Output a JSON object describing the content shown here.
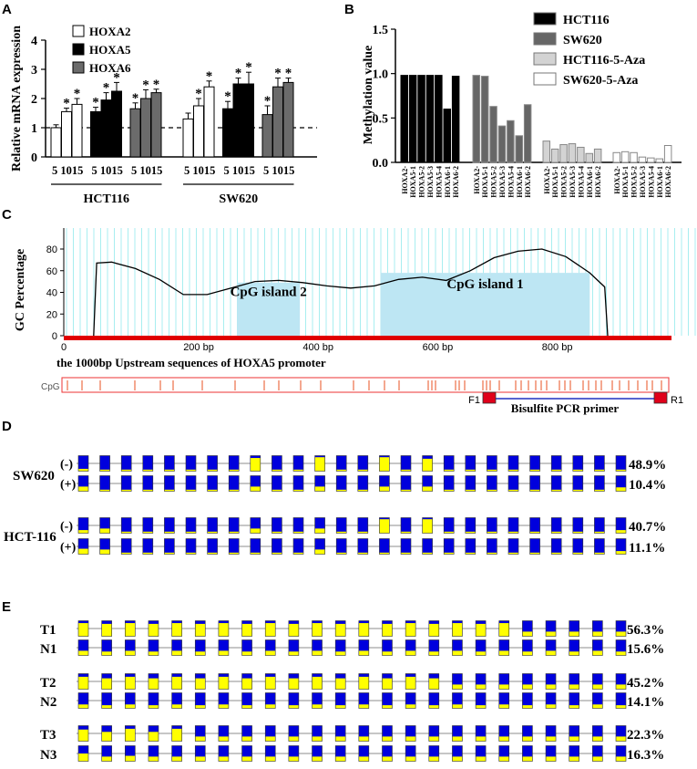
{
  "panels": {
    "a": "A",
    "b": "B",
    "c": "C",
    "d": "D",
    "e": "E"
  },
  "chart_data": [
    {
      "type": "bar",
      "panel": "A",
      "ylabel": "Relative mRNA expression",
      "ylim": [
        0,
        4
      ],
      "yticks": [
        "0",
        "1",
        "2",
        "3",
        "4"
      ],
      "reference_line": 1,
      "legend": [
        "HOXA2",
        "HOXA5",
        "HOXA6"
      ],
      "doses": [
        "5",
        "10",
        "15"
      ],
      "dose_label": "5 1015",
      "groups": [
        {
          "name": "HCT116",
          "series": [
            {
              "name": "HOXA2",
              "color": "#ffffff",
              "values": [
                1.0,
                1.55,
                1.8
              ],
              "err": [
                0.1,
                0.12,
                0.2
              ],
              "star": [
                false,
                true,
                true
              ]
            },
            {
              "name": "HOXA5",
              "color": "#000000",
              "values": [
                1.55,
                1.95,
                2.25
              ],
              "err": [
                0.15,
                0.25,
                0.3
              ],
              "star": [
                true,
                true,
                true
              ]
            },
            {
              "name": "HOXA6",
              "color": "#6b6b6b",
              "values": [
                1.65,
                2.0,
                2.2
              ],
              "err": [
                0.2,
                0.3,
                0.12
              ],
              "star": [
                true,
                true,
                true
              ]
            }
          ]
        },
        {
          "name": "SW620",
          "series": [
            {
              "name": "HOXA2",
              "color": "#ffffff",
              "values": [
                1.3,
                1.75,
                2.4
              ],
              "err": [
                0.2,
                0.25,
                0.2
              ],
              "star": [
                false,
                true,
                true
              ]
            },
            {
              "name": "HOXA5",
              "color": "#000000",
              "values": [
                1.65,
                2.5,
                2.5
              ],
              "err": [
                0.25,
                0.2,
                0.4
              ],
              "star": [
                true,
                true,
                true
              ]
            },
            {
              "name": "HOXA6",
              "color": "#6b6b6b",
              "values": [
                1.45,
                2.4,
                2.55
              ],
              "err": [
                0.3,
                0.3,
                0.15
              ],
              "star": [
                true,
                true,
                true
              ]
            }
          ]
        }
      ]
    },
    {
      "type": "bar",
      "panel": "B",
      "ylabel": "Methylation value",
      "ylim": [
        0,
        1.5
      ],
      "yticks": [
        "0.0",
        "0.5",
        "1.0",
        "1.5"
      ],
      "categories": [
        "HOXA2-",
        "HOXA5-1",
        "HOXA5-2",
        "HOXA5-3",
        "HOXA5-4",
        "HOXA6-1",
        "HOXA6-2"
      ],
      "series": [
        {
          "name": "HCT116",
          "color": "#000000",
          "values": [
            0.98,
            0.98,
            0.98,
            0.98,
            0.98,
            0.6,
            0.97
          ]
        },
        {
          "name": "SW620",
          "color": "#666666",
          "values": [
            0.98,
            0.97,
            0.63,
            0.41,
            0.47,
            0.3,
            0.65
          ]
        },
        {
          "name": "HCT116-5-Aza",
          "color": "#d3d3d3",
          "values": [
            0.24,
            0.15,
            0.2,
            0.21,
            0.17,
            0.1,
            0.15
          ]
        },
        {
          "name": "SW620-5-Aza",
          "color": "#ffffff",
          "values": [
            0.11,
            0.12,
            0.11,
            0.06,
            0.05,
            0.04,
            0.19
          ]
        }
      ]
    },
    {
      "type": "line",
      "panel": "C",
      "ylabel": "GC Percentage",
      "ylim": [
        0,
        80
      ],
      "yticks": [
        "0",
        "20",
        "40",
        "60",
        "80"
      ],
      "x_ticks": [
        {
          "value": 0,
          "label": "0"
        },
        {
          "value": 200,
          "label": "200  bp"
        },
        {
          "value": 400,
          "label": "400  bp"
        },
        {
          "value": 600,
          "label": "600  bp"
        },
        {
          "value": 800,
          "label": "800  bp"
        }
      ],
      "x": [
        50,
        55,
        80,
        120,
        160,
        200,
        240,
        280,
        320,
        360,
        400,
        440,
        480,
        520,
        560,
        600,
        640,
        680,
        720,
        760,
        800,
        840,
        880,
        905,
        910
      ],
      "y": [
        0,
        67,
        68,
        62,
        52,
        38,
        38,
        44,
        50,
        51,
        49,
        46,
        44,
        46,
        52,
        54,
        51,
        60,
        72,
        78,
        80,
        73,
        58,
        45,
        0
      ],
      "islands": [
        {
          "label": "CpG island 2",
          "start": 290,
          "end": 395
        },
        {
          "label": "CpG  island 1",
          "start": 530,
          "end": 880
        }
      ],
      "caption": "the 1000bp Upstream sequences of HOXA5 promoter",
      "cpg_track_label": "CpG",
      "primer_f": "F1",
      "primer_r": "R1",
      "primer_label": "Bisulfite PCR primer"
    },
    {
      "type": "table",
      "panel": "D",
      "description": "bisulfite sequencing methylation per CpG site",
      "rows": [
        {
          "cell": "SW620",
          "treat": "(-)",
          "pct": "48.9%",
          "meth": [
            0.15,
            0.1,
            0.1,
            0.1,
            0.1,
            0.1,
            0.1,
            0.1,
            0.85,
            0.1,
            0.1,
            0.9,
            0.1,
            0.1,
            0.9,
            0.1,
            0.8,
            0.1,
            0.1,
            0.1,
            0.1,
            0.1,
            0.1,
            0.1,
            0.1,
            0.1
          ]
        },
        {
          "cell": "",
          "treat": "(+)",
          "pct": "10.4%",
          "meth": [
            0.3,
            0.1,
            0.1,
            0.1,
            0.1,
            0.1,
            0.1,
            0.1,
            0.3,
            0.1,
            0.1,
            0.3,
            0.1,
            0.1,
            0.3,
            0.1,
            0.3,
            0.1,
            0.1,
            0.1,
            0.1,
            0.1,
            0.1,
            0.1,
            0.1,
            0.25
          ]
        },
        {
          "cell": "HCT-116",
          "treat": "(-)",
          "pct": "40.7%",
          "meth": [
            0.2,
            0.3,
            0.1,
            0.1,
            0.1,
            0.1,
            0.1,
            0.1,
            0.3,
            0.1,
            0.1,
            0.3,
            0.1,
            0.1,
            0.9,
            0.1,
            0.9,
            0.1,
            0.1,
            0.1,
            0.1,
            0.1,
            0.1,
            0.1,
            0.1,
            0.2
          ]
        },
        {
          "cell": "",
          "treat": "(+)",
          "pct": "11.1%",
          "meth": [
            0.35,
            0.3,
            0.1,
            0.1,
            0.1,
            0.1,
            0.1,
            0.1,
            0.1,
            0.1,
            0.1,
            0.3,
            0.1,
            0.1,
            0.1,
            0.1,
            0.1,
            0.1,
            0.1,
            0.1,
            0.1,
            0.1,
            0.1,
            0.1,
            0.1,
            0.2
          ]
        }
      ]
    },
    {
      "type": "table",
      "panel": "E",
      "description": "bisulfite sequencing methylation in tumor (T) and normal (N) tissues",
      "rows": [
        {
          "sample": "T1",
          "pct": "56.3%",
          "meth": [
            0.85,
            0.8,
            0.85,
            0.8,
            0.85,
            0.8,
            0.85,
            0.8,
            0.85,
            0.8,
            0.85,
            0.8,
            0.85,
            0.8,
            0.85,
            0.8,
            0.85,
            0.8,
            0.85,
            0.3,
            0.3,
            0.3,
            0.3,
            0.3
          ]
        },
        {
          "sample": "N1",
          "pct": "15.6%",
          "meth": [
            0.3,
            0.25,
            0.3,
            0.25,
            0.3,
            0.25,
            0.3,
            0.25,
            0.3,
            0.25,
            0.3,
            0.25,
            0.3,
            0.25,
            0.3,
            0.25,
            0.3,
            0.25,
            0.3,
            0.25,
            0.3,
            0.25,
            0.3,
            0.25
          ]
        },
        {
          "sample": "T2",
          "pct": "45.2%",
          "meth": [
            0.8,
            0.7,
            0.8,
            0.7,
            0.8,
            0.7,
            0.8,
            0.7,
            0.8,
            0.7,
            0.8,
            0.7,
            0.8,
            0.7,
            0.8,
            0.7,
            0.3,
            0.3,
            0.3,
            0.3,
            0.3,
            0.3,
            0.3,
            0.3
          ]
        },
        {
          "sample": "N2",
          "pct": "14.1%",
          "meth": [
            0.25,
            0.2,
            0.25,
            0.2,
            0.25,
            0.2,
            0.25,
            0.2,
            0.25,
            0.2,
            0.25,
            0.2,
            0.25,
            0.2,
            0.25,
            0.2,
            0.25,
            0.2,
            0.25,
            0.2,
            0.25,
            0.2,
            0.25,
            0.2
          ]
        },
        {
          "sample": "T3",
          "pct": "22.3%",
          "meth": [
            0.75,
            0.6,
            0.8,
            0.6,
            0.8,
            0.3,
            0.3,
            0.3,
            0.3,
            0.3,
            0.3,
            0.3,
            0.3,
            0.3,
            0.3,
            0.3,
            0.3,
            0.3,
            0.3,
            0.3,
            0.3,
            0.3,
            0.3,
            0.3
          ]
        },
        {
          "sample": "N3",
          "pct": "16.3%",
          "meth": [
            0.5,
            0.3,
            0.35,
            0.3,
            0.3,
            0.3,
            0.3,
            0.3,
            0.3,
            0.3,
            0.3,
            0.3,
            0.3,
            0.3,
            0.3,
            0.3,
            0.3,
            0.3,
            0.3,
            0.3,
            0.3,
            0.3,
            0.3,
            0.3
          ]
        }
      ]
    }
  ]
}
